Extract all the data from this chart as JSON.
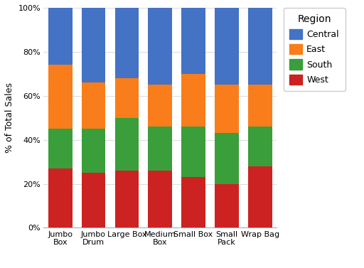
{
  "categories": [
    "Jumbo\nBox",
    "Jumbo\nDrum",
    "Large Box",
    "Medium\nBox",
    "Small Box",
    "Small\nPack",
    "Wrap Bag"
  ],
  "regions": [
    "West",
    "South",
    "East",
    "Central"
  ],
  "colors": [
    "#cc2222",
    "#3a9e3a",
    "#f97d1a",
    "#4472c4"
  ],
  "values": {
    "West": [
      0.27,
      0.25,
      0.26,
      0.26,
      0.23,
      0.2,
      0.28
    ],
    "South": [
      0.18,
      0.2,
      0.24,
      0.2,
      0.23,
      0.23,
      0.18
    ],
    "East": [
      0.29,
      0.21,
      0.18,
      0.19,
      0.24,
      0.22,
      0.19
    ],
    "Central": [
      0.26,
      0.34,
      0.32,
      0.35,
      0.3,
      0.35,
      0.35
    ]
  },
  "ylabel": "% of Total Sales",
  "ylim": [
    0,
    1
  ],
  "yticks": [
    0.0,
    0.2,
    0.4,
    0.6,
    0.8,
    1.0
  ],
  "ytick_labels": [
    "0%",
    "20%",
    "40%",
    "60%",
    "80%",
    "100%"
  ],
  "legend_title": "Region",
  "legend_labels": [
    "Central",
    "East",
    "South",
    "West"
  ],
  "legend_colors": [
    "#4472c4",
    "#f97d1a",
    "#3a9e3a",
    "#cc2222"
  ],
  "background_color": "#ffffff",
  "plot_bg_color": "#ffffff",
  "grid_color": "#dddddd",
  "axis_fontsize": 9,
  "tick_fontsize": 8,
  "legend_fontsize": 9,
  "legend_title_fontsize": 10
}
